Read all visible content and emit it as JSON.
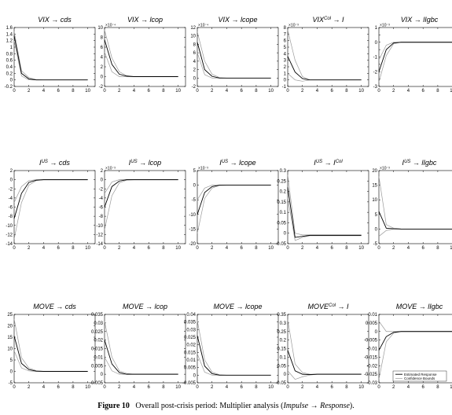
{
  "caption": {
    "label": "Figure 10",
    "text": "Overall post-crisis period: Multiplier analysis (",
    "impulse": "Impulse",
    "arrow": " → ",
    "response": "Response",
    "close": ")."
  },
  "legend": {
    "estimated": "Estimated Response",
    "bounds": "Confidence Bounds"
  },
  "chart_data": [
    {
      "type": "line",
      "title": {
        "imp": "VIX",
        "resp": "cds",
        "sup": ""
      },
      "multiplier": "",
      "x": [
        0,
        1,
        2,
        3,
        4,
        5,
        6,
        7,
        8,
        9,
        10
      ],
      "xlim": [
        0,
        11
      ],
      "xticks": [
        0,
        2,
        4,
        6,
        8,
        10
      ],
      "ylim": [
        -0.2,
        1.6
      ],
      "yticks": [
        -0.2,
        0,
        0.2,
        0.4,
        0.6,
        0.8,
        1,
        1.2,
        1.4,
        1.6
      ],
      "yticklabels": [
        "-0.2",
        "0",
        "0.2",
        "0.4",
        "0.6",
        "0.8",
        "1",
        "1.2",
        "1.4",
        "1.6"
      ],
      "estimate": [
        1.35,
        0.2,
        0.03,
        0,
        0,
        0,
        0,
        0,
        0,
        0,
        0
      ],
      "upper": [
        1.48,
        0.28,
        0.07,
        0.01,
        0,
        0,
        0,
        0,
        0,
        0,
        0
      ],
      "lower": [
        1.2,
        0.12,
        0,
        0,
        0,
        0,
        0,
        0,
        0,
        0,
        0
      ]
    },
    {
      "type": "line",
      "title": {
        "imp": "VIX",
        "resp": "lcop",
        "sup": ""
      },
      "multiplier": "×10⁻⁴",
      "x": [
        0,
        1,
        2,
        3,
        4,
        5,
        6,
        7,
        8,
        9,
        10
      ],
      "xlim": [
        0,
        11
      ],
      "xticks": [
        0,
        2,
        4,
        6,
        8,
        10
      ],
      "ylim": [
        -2,
        10
      ],
      "yticks": [
        -2,
        0,
        2,
        4,
        6,
        8,
        10
      ],
      "yticklabels": [
        "-2",
        "0",
        "2",
        "4",
        "6",
        "8",
        "10"
      ],
      "estimate": [
        7.5,
        2.5,
        0.5,
        0.1,
        0,
        0,
        0,
        0,
        0,
        0,
        0
      ],
      "upper": [
        9.5,
        3.8,
        1.0,
        0.2,
        0,
        0,
        0,
        0,
        0,
        0,
        0
      ],
      "lower": [
        5.0,
        1.0,
        0,
        0,
        0,
        0,
        0,
        0,
        0,
        0,
        0
      ]
    },
    {
      "type": "line",
      "title": {
        "imp": "VIX",
        "resp": "lcope",
        "sup": ""
      },
      "multiplier": "×10⁻⁴",
      "x": [
        0,
        1,
        2,
        3,
        4,
        5,
        6,
        7,
        8,
        9,
        10
      ],
      "xlim": [
        0,
        11
      ],
      "xticks": [
        0,
        2,
        4,
        6,
        8,
        10
      ],
      "ylim": [
        -2,
        12
      ],
      "yticks": [
        -2,
        0,
        2,
        4,
        6,
        8,
        10,
        12
      ],
      "yticklabels": [
        "-2",
        "0",
        "2",
        "4",
        "6",
        "8",
        "10",
        "12"
      ],
      "estimate": [
        8.5,
        2.0,
        0.4,
        0,
        0,
        0,
        0,
        0,
        0,
        0,
        0
      ],
      "upper": [
        11,
        4.0,
        0.9,
        0.1,
        0,
        0,
        0,
        0,
        0,
        0,
        0
      ],
      "lower": [
        6.0,
        0.8,
        0,
        0,
        0,
        0,
        0,
        0,
        0,
        0,
        0
      ]
    },
    {
      "type": "line",
      "title": {
        "imp": "VIX",
        "resp": "I",
        "sup": "Col"
      },
      "multiplier": "×10⁻³",
      "x": [
        0,
        1,
        2,
        3,
        4,
        5,
        6,
        7,
        8,
        9,
        10
      ],
      "xlim": [
        0,
        11
      ],
      "xticks": [
        0,
        2,
        4,
        6,
        8,
        10
      ],
      "ylim": [
        -1,
        8
      ],
      "yticks": [
        -1,
        0,
        1,
        2,
        3,
        4,
        5,
        6,
        7,
        8
      ],
      "yticklabels": [
        "-1",
        "0",
        "1",
        "2",
        "3",
        "4",
        "5",
        "6",
        "7",
        "8"
      ],
      "estimate": [
        3.6,
        1.2,
        0.2,
        0,
        0,
        0,
        0,
        0,
        0,
        0,
        0
      ],
      "upper": [
        7.6,
        3.0,
        0.5,
        0,
        0,
        0,
        0,
        0,
        0,
        0,
        0
      ],
      "lower": [
        1.0,
        0,
        -0.2,
        0,
        0,
        0,
        0,
        0,
        0,
        0,
        0
      ]
    },
    {
      "type": "line",
      "title": {
        "imp": "VIX",
        "resp": "lIgbc",
        "sup": ""
      },
      "multiplier": "×10⁻³",
      "x": [
        0,
        1,
        2,
        3,
        4,
        5,
        6,
        7,
        8,
        9,
        10
      ],
      "xlim": [
        0,
        11
      ],
      "xticks": [
        0,
        2,
        4,
        6,
        8,
        10
      ],
      "ylim": [
        -3,
        1
      ],
      "yticks": [
        -3,
        -2.5,
        -2,
        -1.5,
        -1,
        -0.5,
        0,
        0.5,
        1
      ],
      "yticklabels": [
        "-3",
        "",
        "-2",
        "",
        "-1",
        "",
        "0",
        "",
        "1"
      ],
      "estimate": [
        -2.0,
        -0.5,
        -0.05,
        0,
        0,
        0,
        0,
        0,
        0,
        0,
        0
      ],
      "upper": [
        -1.2,
        -0.2,
        0,
        0,
        0,
        0,
        0,
        0,
        0,
        0,
        0
      ],
      "lower": [
        -2.7,
        -0.9,
        -0.1,
        0,
        0,
        0,
        0,
        0,
        0,
        0,
        0
      ]
    },
    {
      "type": "line",
      "title": {
        "imp": "I",
        "resp": "cds",
        "sup": "US"
      },
      "multiplier": "",
      "x": [
        0,
        1,
        2,
        3,
        4,
        5,
        6,
        7,
        8,
        9,
        10
      ],
      "xlim": [
        0,
        11
      ],
      "xticks": [
        0,
        2,
        4,
        6,
        8,
        10
      ],
      "ylim": [
        -14,
        2
      ],
      "yticks": [
        -14,
        -12,
        -10,
        -8,
        -6,
        -4,
        -2,
        0,
        2
      ],
      "yticklabels": [
        "-14",
        "-12",
        "-10",
        "-8",
        "-6",
        "-4",
        "-2",
        "0",
        "2"
      ],
      "estimate": [
        -8.5,
        -3.0,
        -0.6,
        -0.1,
        0,
        0,
        0,
        0,
        0,
        0,
        0
      ],
      "upper": [
        -5.0,
        -1.5,
        -0.2,
        0,
        0,
        0,
        0,
        0,
        0,
        0,
        0
      ],
      "lower": [
        -13,
        -5.0,
        -1.2,
        -0.2,
        0,
        0,
        0,
        0,
        0,
        0,
        0
      ]
    },
    {
      "type": "line",
      "title": {
        "imp": "I",
        "resp": "lcop",
        "sup": "US"
      },
      "multiplier": "×10⁻³",
      "x": [
        0,
        1,
        2,
        3,
        4,
        5,
        6,
        7,
        8,
        9,
        10
      ],
      "xlim": [
        0,
        11
      ],
      "xticks": [
        0,
        2,
        4,
        6,
        8,
        10
      ],
      "ylim": [
        -14,
        2
      ],
      "yticks": [
        -14,
        -12,
        -10,
        -8,
        -6,
        -4,
        -2,
        0,
        2
      ],
      "yticklabels": [
        "-14",
        "-12",
        "-10",
        "-8",
        "-6",
        "-4",
        "-2",
        "0",
        "2"
      ],
      "estimate": [
        -6.0,
        -1.5,
        -0.3,
        0,
        0,
        0,
        0,
        0,
        0,
        0,
        0
      ],
      "upper": [
        -3.0,
        -0.5,
        0,
        0,
        0,
        0,
        0,
        0,
        0,
        0,
        0
      ],
      "lower": [
        -11,
        -3.5,
        -0.7,
        -0.1,
        0,
        0,
        0,
        0,
        0,
        0,
        0
      ]
    },
    {
      "type": "line",
      "title": {
        "imp": "I",
        "resp": "lcope",
        "sup": "US"
      },
      "multiplier": "×10⁻³",
      "x": [
        0,
        1,
        2,
        3,
        4,
        5,
        6,
        7,
        8,
        9,
        10
      ],
      "xlim": [
        0,
        11
      ],
      "xticks": [
        0,
        2,
        4,
        6,
        8,
        10
      ],
      "ylim": [
        -20,
        5
      ],
      "yticks": [
        -20,
        -15,
        -10,
        -5,
        0,
        5
      ],
      "yticklabels": [
        "-20",
        "-15",
        "-10",
        "-5",
        "0",
        "5"
      ],
      "estimate": [
        -10,
        -2.5,
        -0.5,
        0,
        0,
        0,
        0,
        0,
        0,
        0,
        0
      ],
      "upper": [
        -5.0,
        -1.0,
        0,
        0,
        0,
        0,
        0,
        0,
        0,
        0,
        0
      ],
      "lower": [
        -16.5,
        -4.5,
        -1.0,
        -0.1,
        0,
        0,
        0,
        0,
        0,
        0,
        0
      ]
    },
    {
      "type": "line",
      "title": {
        "imp": "I",
        "resp": "I",
        "sup": "US",
        "sup2": "Col"
      },
      "multiplier": "",
      "x": [
        0,
        1,
        2,
        3,
        4,
        5,
        6,
        7,
        8,
        9,
        10
      ],
      "xlim": [
        0,
        11
      ],
      "xticks": [
        0,
        2,
        4,
        6,
        8,
        10
      ],
      "ylim": [
        -0.05,
        0.3
      ],
      "yticks": [
        -0.05,
        0,
        0.05,
        0.1,
        0.15,
        0.2,
        0.25,
        0.3
      ],
      "yticklabels": [
        "-0.05",
        "0",
        "0.05",
        "0.1",
        "0.15",
        "0.2",
        "0.25",
        "0.3"
      ],
      "estimate": [
        0.22,
        -0.02,
        -0.015,
        -0.01,
        -0.01,
        -0.01,
        -0.01,
        -0.01,
        -0.01,
        -0.01,
        -0.01
      ],
      "upper": [
        0.28,
        0.0,
        -0.008,
        -0.008,
        -0.008,
        -0.008,
        -0.008,
        -0.008,
        -0.008,
        -0.008,
        -0.008
      ],
      "lower": [
        0.17,
        -0.035,
        -0.02,
        -0.012,
        -0.012,
        -0.012,
        -0.012,
        -0.012,
        -0.012,
        -0.012,
        -0.012
      ]
    },
    {
      "type": "line",
      "title": {
        "imp": "I",
        "resp": "lIgbc",
        "sup": "US"
      },
      "multiplier": "×10⁻³",
      "x": [
        0,
        1,
        2,
        3,
        4,
        5,
        6,
        7,
        8,
        9,
        10
      ],
      "xlim": [
        0,
        11
      ],
      "xticks": [
        0,
        2,
        4,
        6,
        8,
        10
      ],
      "ylim": [
        -5,
        20
      ],
      "yticks": [
        -5,
        0,
        5,
        10,
        15,
        20
      ],
      "yticklabels": [
        "-5",
        "0",
        "5",
        "10",
        "15",
        "20"
      ],
      "estimate": [
        6.0,
        0.3,
        0.1,
        0,
        0,
        0,
        0,
        0,
        0,
        0,
        0
      ],
      "upper": [
        18,
        1.5,
        0.3,
        0.05,
        0,
        0,
        0,
        0,
        0,
        0,
        0
      ],
      "lower": [
        -2.5,
        -0.5,
        0,
        0,
        0,
        0,
        0,
        0,
        0,
        0,
        0
      ]
    },
    {
      "type": "line",
      "title": {
        "imp": "MOVE",
        "resp": "cds",
        "sup": ""
      },
      "multiplier": "",
      "x": [
        0,
        1,
        2,
        3,
        4,
        5,
        6,
        7,
        8,
        9,
        10
      ],
      "xlim": [
        0,
        11
      ],
      "xticks": [
        0,
        2,
        4,
        6,
        8,
        10
      ],
      "ylim": [
        -5,
        25
      ],
      "yticks": [
        -5,
        0,
        5,
        10,
        15,
        20,
        25
      ],
      "yticklabels": [
        "-5",
        "0",
        "5",
        "10",
        "15",
        "20",
        "25"
      ],
      "estimate": [
        15.5,
        3.5,
        0.8,
        0.1,
        0,
        0,
        0,
        0,
        0,
        0,
        0
      ],
      "upper": [
        23,
        6.0,
        1.5,
        0.3,
        0,
        0,
        0,
        0,
        0,
        0,
        0
      ],
      "lower": [
        9.0,
        1.5,
        0.2,
        0,
        0,
        0,
        0,
        0,
        0,
        0,
        0
      ]
    },
    {
      "type": "line",
      "title": {
        "imp": "MOVE",
        "resp": "lcop",
        "sup": ""
      },
      "multiplier": "",
      "x": [
        0,
        1,
        2,
        3,
        4,
        5,
        6,
        7,
        8,
        9,
        10
      ],
      "xlim": [
        0,
        11
      ],
      "xticks": [
        0,
        2,
        4,
        6,
        8,
        10
      ],
      "ylim": [
        -0.005,
        0.035
      ],
      "yticks": [
        -0.005,
        0,
        0.005,
        0.01,
        0.015,
        0.02,
        0.025,
        0.03,
        0.035
      ],
      "yticklabels": [
        "-0.005",
        "0",
        "0.005",
        "0.01",
        "0.015",
        "0.02",
        "0.025",
        "0.03",
        "0.035"
      ],
      "estimate": [
        0.02,
        0.006,
        0.001,
        0,
        0,
        0,
        0,
        0,
        0,
        0,
        0
      ],
      "upper": [
        0.031,
        0.01,
        0.002,
        0.0005,
        0,
        0,
        0,
        0,
        0,
        0,
        0
      ],
      "lower": [
        0.01,
        0.002,
        0,
        0,
        0,
        0,
        0,
        0,
        0,
        0,
        0
      ]
    },
    {
      "type": "line",
      "title": {
        "imp": "MOVE",
        "resp": "lcope",
        "sup": ""
      },
      "multiplier": "",
      "x": [
        0,
        1,
        2,
        3,
        4,
        5,
        6,
        7,
        8,
        9,
        10
      ],
      "xlim": [
        0,
        11
      ],
      "xticks": [
        0,
        2,
        4,
        6,
        8,
        10
      ],
      "ylim": [
        -0.005,
        0.04
      ],
      "yticks": [
        -0.005,
        0,
        0.005,
        0.01,
        0.015,
        0.02,
        0.025,
        0.03,
        0.035,
        0.04
      ],
      "yticklabels": [
        "-0.005",
        "0",
        "0.005",
        "0.01",
        "0.015",
        "0.02",
        "0.025",
        "0.03",
        "0.035",
        "0.04"
      ],
      "estimate": [
        0.026,
        0.006,
        0.001,
        0,
        0,
        0,
        0,
        0,
        0,
        0,
        0
      ],
      "upper": [
        0.036,
        0.01,
        0.002,
        0.0003,
        0,
        0,
        0,
        0,
        0,
        0,
        0
      ],
      "lower": [
        0.014,
        0.002,
        0,
        0,
        0,
        0,
        0,
        0,
        0,
        0,
        0
      ]
    },
    {
      "type": "line",
      "title": {
        "imp": "MOVE",
        "resp": "I",
        "sup": "Col"
      },
      "multiplier": "",
      "x": [
        0,
        1,
        2,
        3,
        4,
        5,
        6,
        7,
        8,
        9,
        10
      ],
      "xlim": [
        0,
        11
      ],
      "xticks": [
        0,
        2,
        4,
        6,
        8,
        10
      ],
      "ylim": [
        -0.05,
        0.35
      ],
      "yticks": [
        -0.05,
        0,
        0.05,
        0.1,
        0.15,
        0.2,
        0.25,
        0.3,
        0.35
      ],
      "yticklabels": [
        "-0.05",
        "0",
        "0.05",
        "0.1",
        "0.15",
        "0.2",
        "0.25",
        "0.3",
        "0.35"
      ],
      "estimate": [
        0.14,
        0.02,
        0,
        -0.002,
        0,
        0,
        0,
        0,
        0,
        0,
        0
      ],
      "upper": [
        0.32,
        0.06,
        0.01,
        0,
        0,
        0,
        0,
        0,
        0,
        0,
        0
      ],
      "lower": [
        0.02,
        -0.03,
        -0.015,
        -0.005,
        0,
        0,
        0,
        0,
        0,
        0,
        0
      ]
    },
    {
      "type": "line",
      "title": {
        "imp": "MOVE",
        "resp": "lIgbc",
        "sup": ""
      },
      "multiplier": "",
      "x": [
        0,
        1,
        2,
        3,
        4,
        5,
        6,
        7,
        8,
        9,
        10
      ],
      "xlim": [
        0,
        11
      ],
      "xticks": [
        0,
        2,
        4,
        6,
        8,
        10
      ],
      "ylim": [
        -0.03,
        0.01
      ],
      "yticks": [
        -0.03,
        -0.025,
        -0.02,
        -0.015,
        -0.01,
        -0.005,
        0,
        0.005,
        0.01
      ],
      "yticklabels": [
        "-0.03",
        "-0.025",
        "-0.02",
        "-0.015",
        "-0.01",
        "-0.005",
        "0",
        "0.005",
        "0.01"
      ],
      "estimate": [
        -0.011,
        -0.003,
        -0.0005,
        0,
        0,
        0,
        0,
        0,
        0,
        0,
        0
      ],
      "upper": [
        0.006,
        0,
        0,
        0,
        0,
        0,
        0,
        0,
        0,
        0,
        0
      ],
      "lower": [
        -0.028,
        -0.006,
        -0.001,
        0,
        0,
        0,
        0,
        0,
        0,
        0,
        0
      ]
    }
  ]
}
